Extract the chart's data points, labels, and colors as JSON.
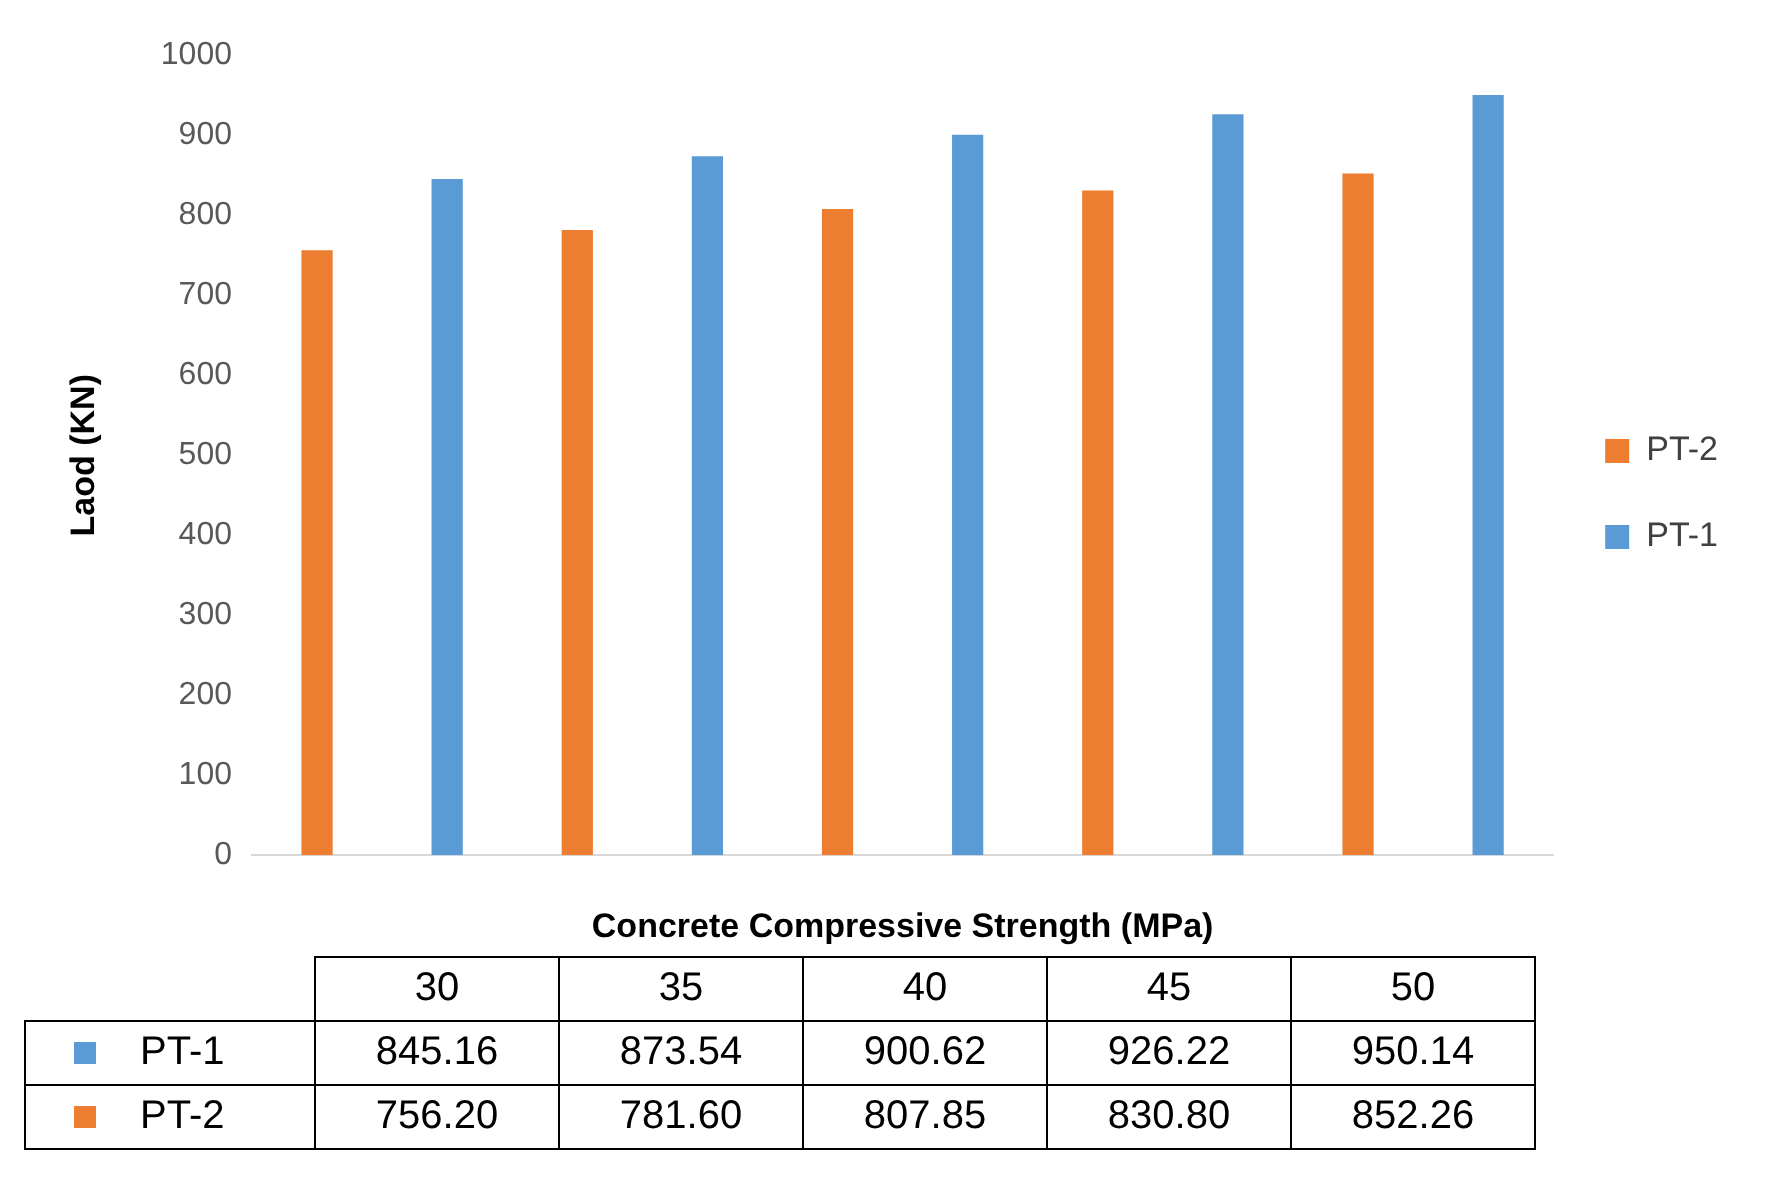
{
  "chart_data": {
    "type": "bar",
    "xlabel": "Concrete Compressive Strength (MPa)",
    "ylabel": "Laod (KN)",
    "categories": [
      "30",
      "35",
      "40",
      "45",
      "50"
    ],
    "series": [
      {
        "name": "PT-2",
        "color": "#ed7d31",
        "values": [
          756.2,
          781.6,
          807.85,
          830.8,
          852.26
        ],
        "value_labels": [
          "756.20",
          "781.60",
          "807.85",
          "830.80",
          "852.26"
        ]
      },
      {
        "name": "PT-1",
        "color": "#5b9bd5",
        "values": [
          845.16,
          873.54,
          900.62,
          926.22,
          950.14
        ],
        "value_labels": [
          "845.16",
          "873.54",
          "900.62",
          "926.22",
          "950.14"
        ]
      }
    ],
    "ylim": [
      0,
      1000
    ],
    "yticks": [
      0,
      100,
      200,
      300,
      400,
      500,
      600,
      700,
      800,
      900,
      1000
    ],
    "grid": false,
    "legend": "right"
  }
}
